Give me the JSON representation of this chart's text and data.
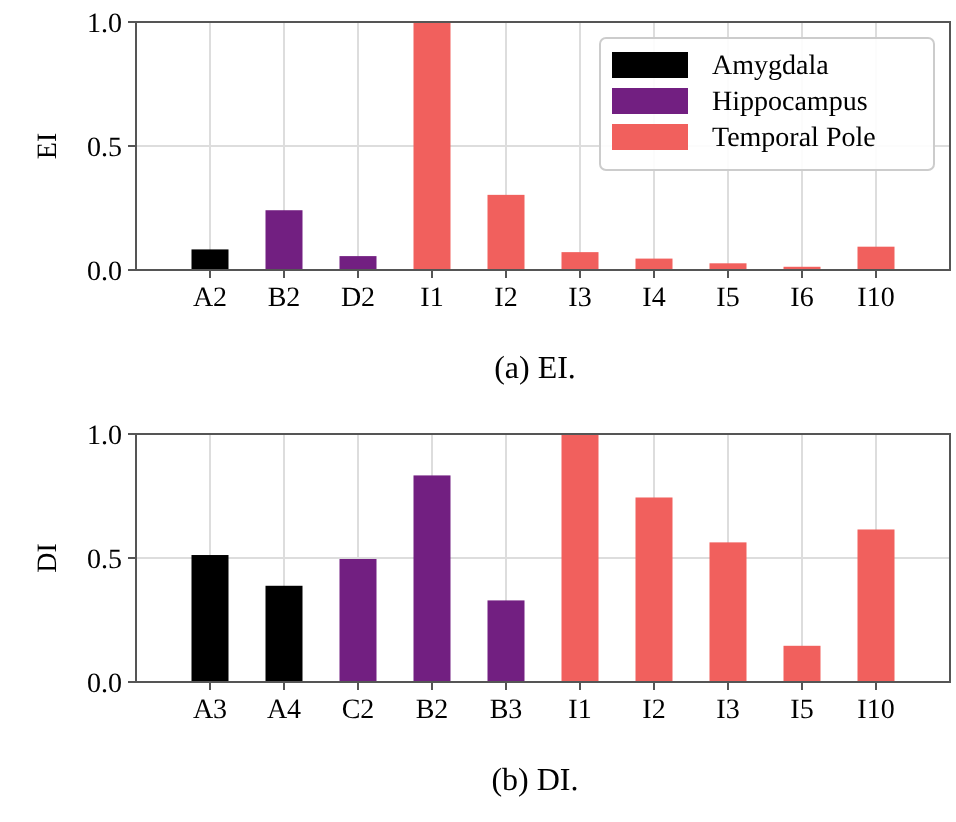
{
  "chart_data": [
    {
      "type": "bar",
      "title": "(a) EI.",
      "ylabel": "EI",
      "categories": [
        "A2",
        "B2",
        "D2",
        "I1",
        "I2",
        "I3",
        "I4",
        "I5",
        "I6",
        "I10"
      ],
      "series": [
        {
          "name": "Amygdala",
          "color": "#000000",
          "values": [
            0.083,
            null,
            null,
            null,
            null,
            null,
            null,
            null,
            null,
            null
          ]
        },
        {
          "name": "Hippocampus",
          "color": "#721f81",
          "values": [
            null,
            0.241,
            0.056,
            null,
            null,
            null,
            null,
            null,
            null,
            null
          ]
        },
        {
          "name": "Temporal Pole",
          "color": "#f1605d",
          "values": [
            null,
            null,
            null,
            1.0,
            0.303,
            0.072,
            0.046,
            0.027,
            0.013,
            0.094
          ]
        }
      ],
      "ylim": [
        0,
        1
      ],
      "yticks": [
        {
          "value": 0,
          "label": "0.0"
        },
        {
          "value": 0.5,
          "label": "0.5"
        },
        {
          "value": 1,
          "label": "1.0"
        }
      ],
      "grid": true,
      "legend": "top right"
    },
    {
      "type": "bar",
      "title": "(b) DI.",
      "ylabel": "DI",
      "categories": [
        "A3",
        "A4",
        "C2",
        "B2",
        "B3",
        "I1",
        "I2",
        "I3",
        "I5",
        "I10"
      ],
      "series": [
        {
          "color": "#000000",
          "values": [
            0.512,
            0.388,
            null,
            null,
            null,
            null,
            null,
            null,
            null,
            null
          ]
        },
        {
          "color": "#721f81",
          "values": [
            null,
            null,
            0.496,
            0.833,
            0.329,
            null,
            null,
            null,
            null,
            null
          ]
        },
        {
          "color": "#f1605d",
          "values": [
            null,
            null,
            null,
            null,
            null,
            1.0,
            0.744,
            0.563,
            0.146,
            0.615
          ]
        }
      ],
      "ylim": [
        0,
        1
      ],
      "yticks": [
        {
          "value": 0,
          "label": "0.0"
        },
        {
          "value": 0.5,
          "label": "0.5"
        },
        {
          "value": 1,
          "label": "1.0"
        }
      ],
      "grid": true,
      "legend": false
    }
  ]
}
